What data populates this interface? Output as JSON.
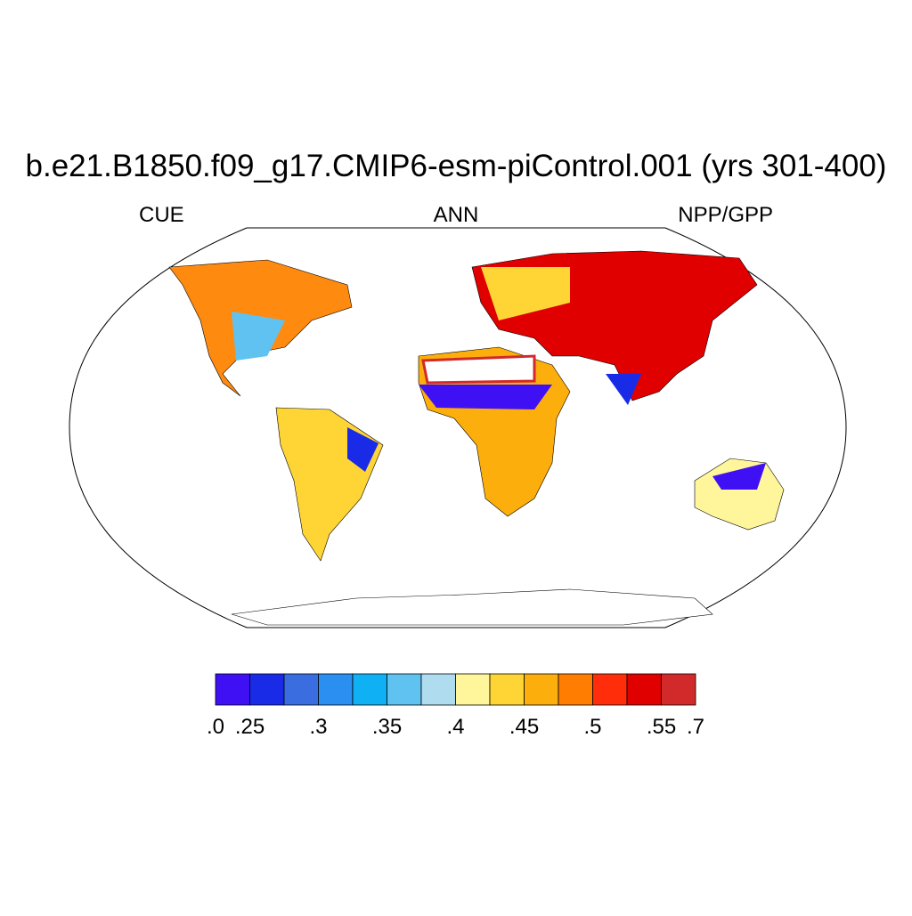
{
  "title": "b.e21.B1850.f09_g17.CMIP6-esm-piControl.001 (yrs 301-400)",
  "left_label": "CUE",
  "center_label": "ANN",
  "right_label": "NPP/GPP",
  "colorbar": {
    "colors": [
      "#4010f5",
      "#1a2be8",
      "#3a6ee0",
      "#2b8ff2",
      "#10b0f5",
      "#60c2f0",
      "#b0dcf0",
      "#fff59a",
      "#ffd535",
      "#fcae0c",
      "#ff7d00",
      "#ff2d0a",
      "#e00000",
      "#d22a2a"
    ],
    "levels": [
      0,
      0.25,
      0.275,
      0.3,
      0.325,
      0.35,
      0.375,
      0.4,
      0.425,
      0.45,
      0.475,
      0.5,
      0.525,
      0.55,
      0.7
    ],
    "ticks": [
      {
        "value": 0,
        "label": ".0"
      },
      {
        "value": 0.25,
        "label": ".25"
      },
      {
        "value": 0.3,
        "label": ".3"
      },
      {
        "value": 0.35,
        "label": ".35"
      },
      {
        "value": 0.4,
        "label": ".4"
      },
      {
        "value": 0.45,
        "label": ".45"
      },
      {
        "value": 0.5,
        "label": ".5"
      },
      {
        "value": 0.55,
        "label": ".55"
      },
      {
        "value": 0.7,
        "label": ".7"
      }
    ]
  }
}
